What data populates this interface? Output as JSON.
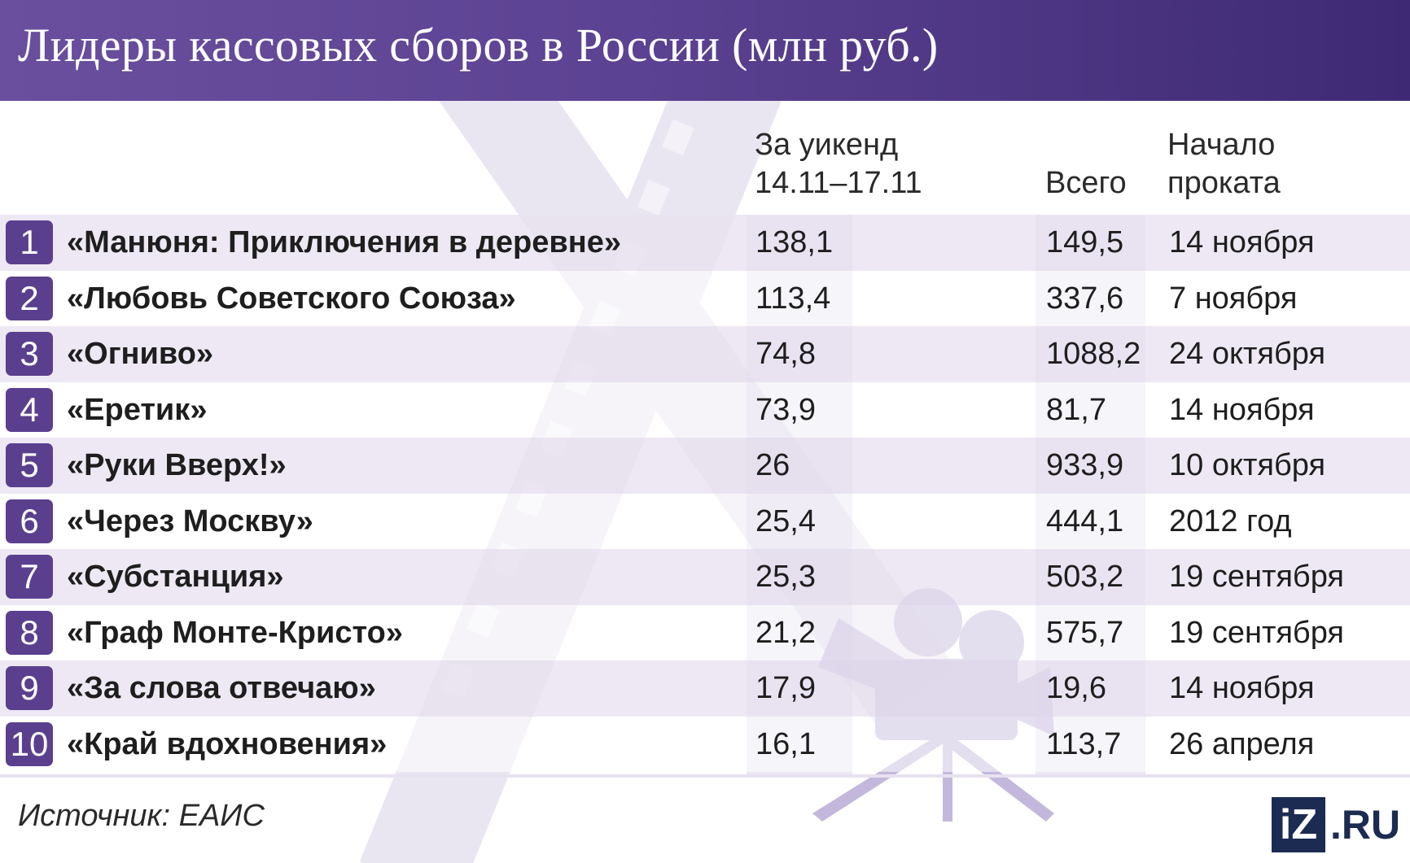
{
  "chart_data": {
    "type": "table",
    "title": "Лидеры кассовых сборов в России (млн руб.)",
    "columns": {
      "weekend_line1": "За уикенд",
      "weekend_line2": "14.11–17.11",
      "total": "Всего",
      "start_line1": "Начало",
      "start_line2": "проката"
    },
    "rows": [
      {
        "rank": "1",
        "film": "«Манюня: Приключения в деревне»",
        "weekend": "138,1",
        "total": "149,5",
        "start": "14 ноября"
      },
      {
        "rank": "2",
        "film": "«Любовь Советского Союза»",
        "weekend": "113,4",
        "total": "337,6",
        "start": "7 ноября"
      },
      {
        "rank": "3",
        "film": "«Огниво»",
        "weekend": "74,8",
        "total": "1088,2",
        "start": "24 октября"
      },
      {
        "rank": "4",
        "film": "«Еретик»",
        "weekend": "73,9",
        "total": "81,7",
        "start": "14 ноября"
      },
      {
        "rank": "5",
        "film": "«Руки Вверх!»",
        "weekend": "26",
        "total": "933,9",
        "start": "10 октября"
      },
      {
        "rank": "6",
        "film": "«Через Москву»",
        "weekend": "25,4",
        "total": "444,1",
        "start": "2012 год"
      },
      {
        "rank": "7",
        "film": "«Субстанция»",
        "weekend": "25,3",
        "total": "503,2",
        "start": "19 сентября"
      },
      {
        "rank": "8",
        "film": "«Граф Монте-Кристо»",
        "weekend": "21,2",
        "total": "575,7",
        "start": "19 сентября"
      },
      {
        "rank": "9",
        "film": "«За слова отвечаю»",
        "weekend": "17,9",
        "total": "19,6",
        "start": "14 ноября"
      },
      {
        "rank": "10",
        "film": "«Край вдохновения»",
        "weekend": "16,1",
        "total": "113,7",
        "start": "26 апреля"
      }
    ],
    "source": "Источник: ЕАИС"
  },
  "logo": {
    "box": "iZ",
    "text": ".RU"
  },
  "colors": {
    "header": "#5c4292",
    "rank_badge": "#5b3f8f",
    "row_tint": "#e8e2f0",
    "logo": "#1b2b52"
  },
  "icons": [
    "film-strip-icon",
    "movie-camera-icon"
  ]
}
